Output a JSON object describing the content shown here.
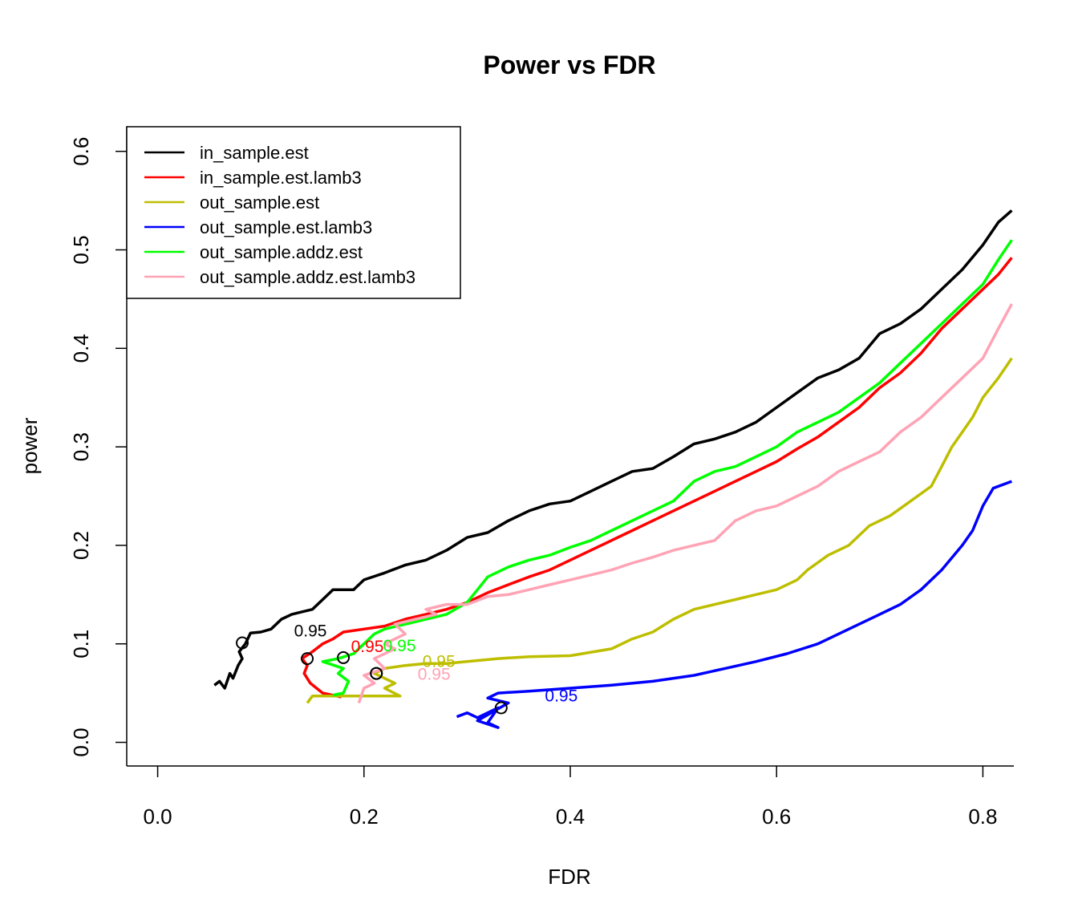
{
  "chart_data": {
    "type": "line",
    "title": "Power vs FDR",
    "xlabel": "FDR",
    "ylabel": "power",
    "xlim": [
      -0.03,
      0.83
    ],
    "ylim": [
      -0.024,
      0.625
    ],
    "xticks": [
      0.0,
      0.2,
      0.4,
      0.6,
      0.8
    ],
    "xtick_labels": [
      "0.0",
      "0.2",
      "0.4",
      "0.6",
      "0.8"
    ],
    "yticks": [
      0.0,
      0.1,
      0.2,
      0.3,
      0.4,
      0.5,
      0.6
    ],
    "ytick_labels": [
      "0.0",
      "0.1",
      "0.2",
      "0.3",
      "0.4",
      "0.5",
      "0.6"
    ],
    "legend_position": "top-left",
    "series": [
      {
        "name": "in_sample.est",
        "color": "#000000",
        "marker": {
          "x": 0.082,
          "y": 0.101,
          "label": "0.95"
        },
        "points": [
          [
            0.055,
            0.058
          ],
          [
            0.06,
            0.062
          ],
          [
            0.065,
            0.055
          ],
          [
            0.07,
            0.07
          ],
          [
            0.073,
            0.065
          ],
          [
            0.078,
            0.078
          ],
          [
            0.082,
            0.085
          ],
          [
            0.079,
            0.092
          ],
          [
            0.085,
            0.1
          ],
          [
            0.09,
            0.111
          ],
          [
            0.1,
            0.112
          ],
          [
            0.11,
            0.115
          ],
          [
            0.12,
            0.125
          ],
          [
            0.13,
            0.13
          ],
          [
            0.15,
            0.135
          ],
          [
            0.16,
            0.145
          ],
          [
            0.17,
            0.155
          ],
          [
            0.19,
            0.155
          ],
          [
            0.2,
            0.165
          ],
          [
            0.22,
            0.172
          ],
          [
            0.24,
            0.18
          ],
          [
            0.26,
            0.185
          ],
          [
            0.28,
            0.195
          ],
          [
            0.3,
            0.208
          ],
          [
            0.32,
            0.213
          ],
          [
            0.34,
            0.225
          ],
          [
            0.36,
            0.235
          ],
          [
            0.38,
            0.242
          ],
          [
            0.4,
            0.245
          ],
          [
            0.42,
            0.255
          ],
          [
            0.44,
            0.265
          ],
          [
            0.46,
            0.275
          ],
          [
            0.48,
            0.278
          ],
          [
            0.5,
            0.29
          ],
          [
            0.52,
            0.303
          ],
          [
            0.54,
            0.308
          ],
          [
            0.56,
            0.315
          ],
          [
            0.58,
            0.325
          ],
          [
            0.6,
            0.34
          ],
          [
            0.62,
            0.355
          ],
          [
            0.64,
            0.37
          ],
          [
            0.66,
            0.378
          ],
          [
            0.68,
            0.39
          ],
          [
            0.7,
            0.415
          ],
          [
            0.72,
            0.425
          ],
          [
            0.74,
            0.44
          ],
          [
            0.76,
            0.46
          ],
          [
            0.78,
            0.48
          ],
          [
            0.8,
            0.505
          ],
          [
            0.815,
            0.528
          ],
          [
            0.828,
            0.54
          ]
        ]
      },
      {
        "name": "in_sample.est.lamb3",
        "color": "#ff0000",
        "marker": {
          "x": 0.145,
          "y": 0.085,
          "label": "0.95"
        },
        "points": [
          [
            0.178,
            0.046
          ],
          [
            0.16,
            0.05
          ],
          [
            0.148,
            0.06
          ],
          [
            0.142,
            0.07
          ],
          [
            0.145,
            0.078
          ],
          [
            0.14,
            0.085
          ],
          [
            0.15,
            0.092
          ],
          [
            0.16,
            0.1
          ],
          [
            0.17,
            0.105
          ],
          [
            0.18,
            0.112
          ],
          [
            0.2,
            0.115
          ],
          [
            0.22,
            0.118
          ],
          [
            0.24,
            0.125
          ],
          [
            0.26,
            0.13
          ],
          [
            0.28,
            0.135
          ],
          [
            0.3,
            0.142
          ],
          [
            0.32,
            0.152
          ],
          [
            0.34,
            0.16
          ],
          [
            0.36,
            0.168
          ],
          [
            0.38,
            0.175
          ],
          [
            0.4,
            0.185
          ],
          [
            0.42,
            0.195
          ],
          [
            0.44,
            0.205
          ],
          [
            0.46,
            0.215
          ],
          [
            0.48,
            0.225
          ],
          [
            0.5,
            0.235
          ],
          [
            0.52,
            0.245
          ],
          [
            0.54,
            0.255
          ],
          [
            0.56,
            0.265
          ],
          [
            0.58,
            0.275
          ],
          [
            0.6,
            0.285
          ],
          [
            0.62,
            0.298
          ],
          [
            0.64,
            0.31
          ],
          [
            0.66,
            0.325
          ],
          [
            0.68,
            0.34
          ],
          [
            0.7,
            0.36
          ],
          [
            0.72,
            0.375
          ],
          [
            0.74,
            0.395
          ],
          [
            0.76,
            0.42
          ],
          [
            0.78,
            0.44
          ],
          [
            0.8,
            0.46
          ],
          [
            0.815,
            0.475
          ],
          [
            0.828,
            0.492
          ]
        ]
      },
      {
        "name": "out_sample.est",
        "color": "#bebe00",
        "marker": {
          "x": 0.212,
          "y": 0.07,
          "label": "0.95"
        },
        "points": [
          [
            0.145,
            0.04
          ],
          [
            0.15,
            0.047
          ],
          [
            0.235,
            0.047
          ],
          [
            0.22,
            0.055
          ],
          [
            0.23,
            0.06
          ],
          [
            0.21,
            0.07
          ],
          [
            0.22,
            0.075
          ],
          [
            0.24,
            0.078
          ],
          [
            0.26,
            0.08
          ],
          [
            0.28,
            0.08
          ],
          [
            0.3,
            0.082
          ],
          [
            0.33,
            0.085
          ],
          [
            0.36,
            0.087
          ],
          [
            0.4,
            0.088
          ],
          [
            0.44,
            0.095
          ],
          [
            0.46,
            0.105
          ],
          [
            0.48,
            0.112
          ],
          [
            0.5,
            0.125
          ],
          [
            0.52,
            0.135
          ],
          [
            0.54,
            0.14
          ],
          [
            0.56,
            0.145
          ],
          [
            0.58,
            0.15
          ],
          [
            0.6,
            0.155
          ],
          [
            0.62,
            0.165
          ],
          [
            0.63,
            0.175
          ],
          [
            0.65,
            0.19
          ],
          [
            0.67,
            0.2
          ],
          [
            0.69,
            0.22
          ],
          [
            0.71,
            0.23
          ],
          [
            0.73,
            0.245
          ],
          [
            0.75,
            0.26
          ],
          [
            0.76,
            0.28
          ],
          [
            0.77,
            0.3
          ],
          [
            0.78,
            0.315
          ],
          [
            0.79,
            0.33
          ],
          [
            0.8,
            0.35
          ],
          [
            0.815,
            0.37
          ],
          [
            0.828,
            0.39
          ]
        ]
      },
      {
        "name": "out_sample.est.lamb3",
        "color": "#0000ff",
        "marker": {
          "x": 0.333,
          "y": 0.035,
          "label": "0.95"
        },
        "points": [
          [
            0.29,
            0.026
          ],
          [
            0.3,
            0.03
          ],
          [
            0.31,
            0.025
          ],
          [
            0.33,
            0.035
          ],
          [
            0.32,
            0.02
          ],
          [
            0.33,
            0.015
          ],
          [
            0.31,
            0.022
          ],
          [
            0.34,
            0.04
          ],
          [
            0.32,
            0.045
          ],
          [
            0.33,
            0.05
          ],
          [
            0.36,
            0.052
          ],
          [
            0.4,
            0.055
          ],
          [
            0.44,
            0.058
          ],
          [
            0.48,
            0.062
          ],
          [
            0.52,
            0.068
          ],
          [
            0.55,
            0.075
          ],
          [
            0.58,
            0.082
          ],
          [
            0.61,
            0.09
          ],
          [
            0.64,
            0.1
          ],
          [
            0.66,
            0.11
          ],
          [
            0.68,
            0.12
          ],
          [
            0.7,
            0.13
          ],
          [
            0.72,
            0.14
          ],
          [
            0.74,
            0.155
          ],
          [
            0.76,
            0.175
          ],
          [
            0.78,
            0.2
          ],
          [
            0.79,
            0.215
          ],
          [
            0.8,
            0.24
          ],
          [
            0.81,
            0.258
          ],
          [
            0.828,
            0.265
          ]
        ]
      },
      {
        "name": "out_sample.addz.est",
        "color": "#00ff00",
        "marker": {
          "x": 0.18,
          "y": 0.086,
          "label": "0.95"
        },
        "points": [
          [
            0.17,
            0.048
          ],
          [
            0.18,
            0.05
          ],
          [
            0.185,
            0.062
          ],
          [
            0.175,
            0.07
          ],
          [
            0.18,
            0.075
          ],
          [
            0.16,
            0.082
          ],
          [
            0.175,
            0.085
          ],
          [
            0.19,
            0.09
          ],
          [
            0.2,
            0.1
          ],
          [
            0.21,
            0.11
          ],
          [
            0.22,
            0.115
          ],
          [
            0.24,
            0.12
          ],
          [
            0.26,
            0.125
          ],
          [
            0.28,
            0.13
          ],
          [
            0.3,
            0.142
          ],
          [
            0.31,
            0.155
          ],
          [
            0.32,
            0.168
          ],
          [
            0.34,
            0.178
          ],
          [
            0.36,
            0.185
          ],
          [
            0.38,
            0.19
          ],
          [
            0.4,
            0.198
          ],
          [
            0.42,
            0.205
          ],
          [
            0.44,
            0.215
          ],
          [
            0.46,
            0.225
          ],
          [
            0.48,
            0.235
          ],
          [
            0.5,
            0.245
          ],
          [
            0.52,
            0.265
          ],
          [
            0.54,
            0.275
          ],
          [
            0.56,
            0.28
          ],
          [
            0.58,
            0.29
          ],
          [
            0.6,
            0.3
          ],
          [
            0.62,
            0.315
          ],
          [
            0.64,
            0.325
          ],
          [
            0.66,
            0.335
          ],
          [
            0.68,
            0.35
          ],
          [
            0.7,
            0.365
          ],
          [
            0.72,
            0.385
          ],
          [
            0.74,
            0.405
          ],
          [
            0.76,
            0.425
          ],
          [
            0.78,
            0.445
          ],
          [
            0.8,
            0.465
          ],
          [
            0.815,
            0.49
          ],
          [
            0.828,
            0.51
          ]
        ]
      },
      {
        "name": "out_sample.addz.est.lamb3",
        "color": "#ffa3b5",
        "marker": {
          "x": 0.212,
          "y": 0.07,
          "label": "0.95"
        },
        "points": [
          [
            0.195,
            0.04
          ],
          [
            0.2,
            0.055
          ],
          [
            0.21,
            0.06
          ],
          [
            0.2,
            0.068
          ],
          [
            0.22,
            0.075
          ],
          [
            0.21,
            0.085
          ],
          [
            0.23,
            0.095
          ],
          [
            0.22,
            0.1
          ],
          [
            0.24,
            0.11
          ],
          [
            0.23,
            0.12
          ],
          [
            0.25,
            0.125
          ],
          [
            0.27,
            0.13
          ],
          [
            0.26,
            0.135
          ],
          [
            0.28,
            0.14
          ],
          [
            0.3,
            0.14
          ],
          [
            0.32,
            0.148
          ],
          [
            0.34,
            0.15
          ],
          [
            0.36,
            0.155
          ],
          [
            0.38,
            0.16
          ],
          [
            0.4,
            0.165
          ],
          [
            0.42,
            0.17
          ],
          [
            0.44,
            0.175
          ],
          [
            0.46,
            0.182
          ],
          [
            0.48,
            0.188
          ],
          [
            0.5,
            0.195
          ],
          [
            0.52,
            0.2
          ],
          [
            0.54,
            0.205
          ],
          [
            0.55,
            0.215
          ],
          [
            0.56,
            0.225
          ],
          [
            0.58,
            0.235
          ],
          [
            0.6,
            0.24
          ],
          [
            0.62,
            0.25
          ],
          [
            0.64,
            0.26
          ],
          [
            0.66,
            0.275
          ],
          [
            0.68,
            0.285
          ],
          [
            0.7,
            0.295
          ],
          [
            0.72,
            0.315
          ],
          [
            0.74,
            0.33
          ],
          [
            0.76,
            0.35
          ],
          [
            0.78,
            0.37
          ],
          [
            0.8,
            0.39
          ],
          [
            0.815,
            0.42
          ],
          [
            0.828,
            0.445
          ]
        ]
      }
    ]
  }
}
